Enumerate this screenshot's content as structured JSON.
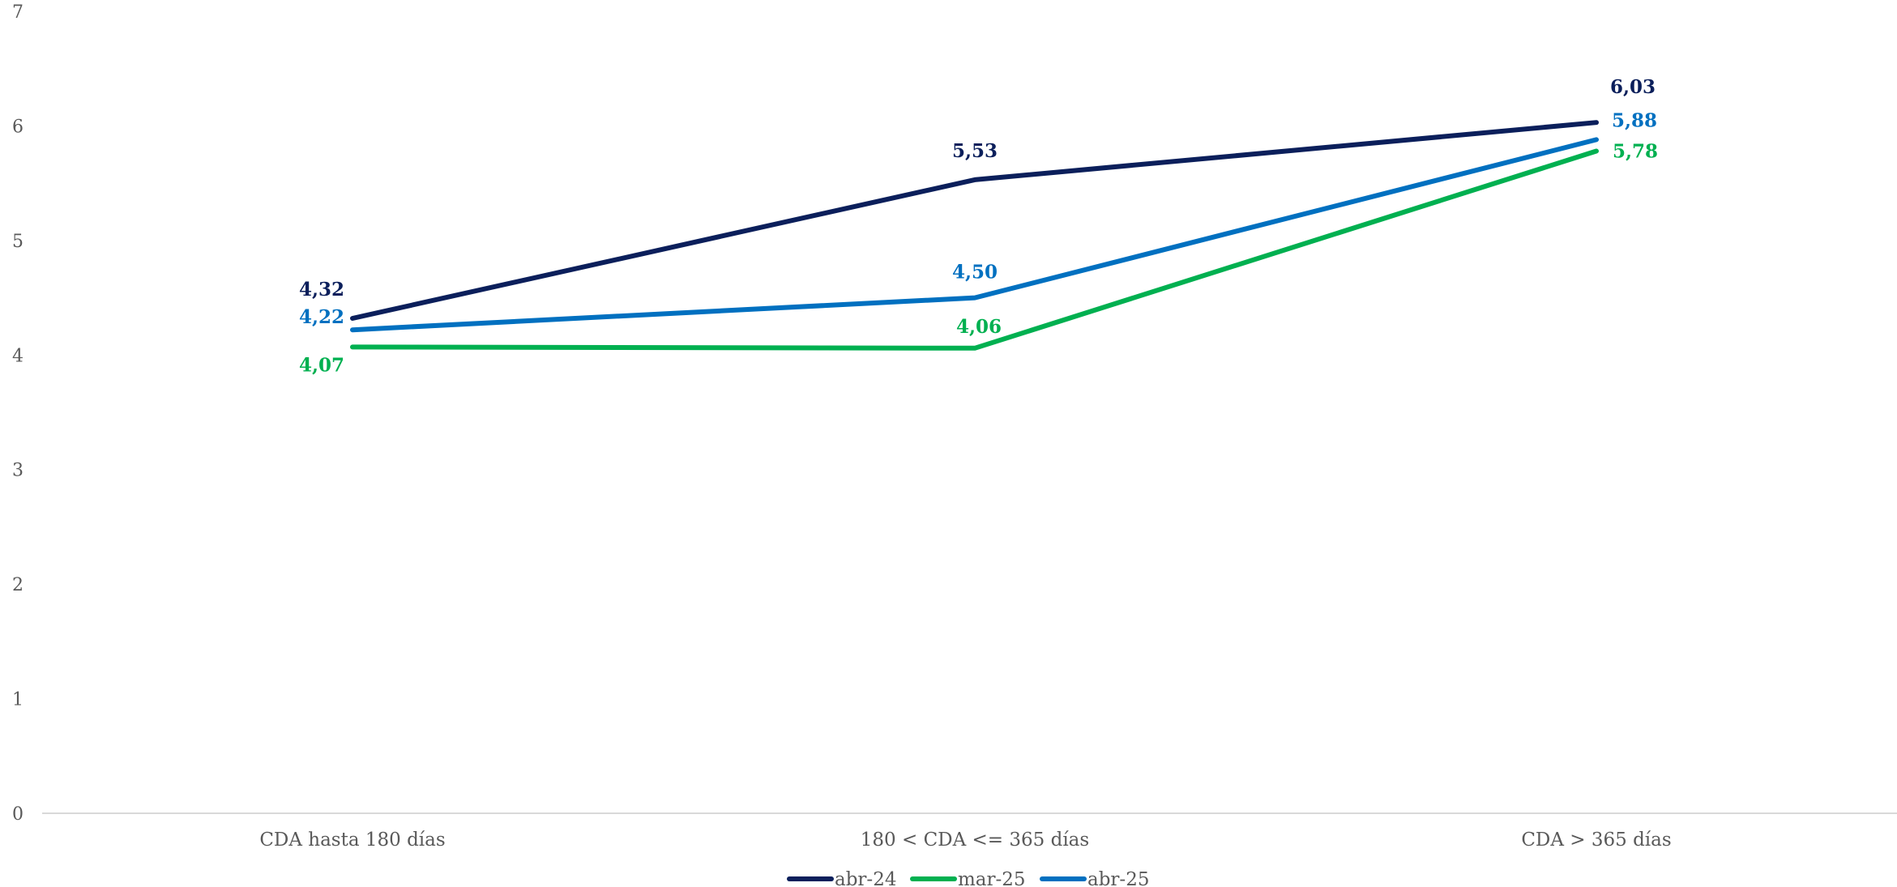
{
  "chart_data": {
    "type": "line",
    "title": "",
    "xlabel": "",
    "ylabel": "",
    "categories": [
      "CDA hasta 180 días",
      "180 < CDA <= 365 días",
      "CDA > 365 días"
    ],
    "ylim": [
      0,
      7
    ],
    "yticks": [
      "0",
      "1",
      "2",
      "3",
      "4",
      "5",
      "6",
      "7"
    ],
    "grid": false,
    "legend_position": "bottom",
    "series": [
      {
        "name": "abr-24",
        "color": "#0B1F5B",
        "values": [
          4.32,
          5.53,
          6.03
        ],
        "labels": [
          "4,32",
          "5,53",
          "6,03"
        ]
      },
      {
        "name": "mar-25",
        "color": "#00B050",
        "values": [
          4.07,
          4.06,
          5.78
        ],
        "labels": [
          "4,07",
          "4,06",
          "5,78"
        ]
      },
      {
        "name": "abr-25",
        "color": "#0070C0",
        "values": [
          4.22,
          4.5,
          5.88
        ],
        "labels": [
          "4,22",
          "4,50",
          "5,88"
        ]
      }
    ]
  }
}
